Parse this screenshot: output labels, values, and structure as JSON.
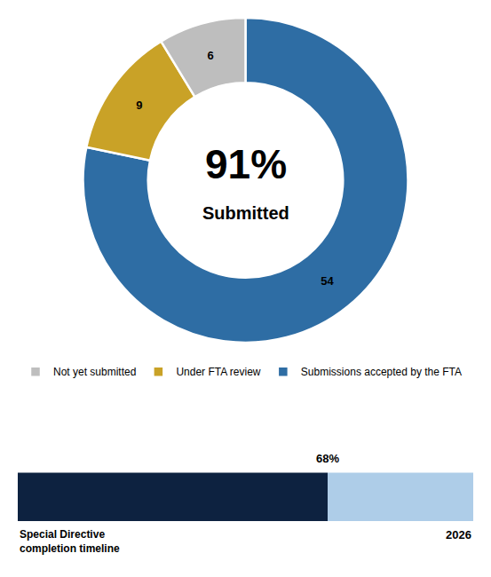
{
  "chart_data": [
    {
      "type": "pie",
      "categories": [
        "Submissions accepted by the FTA",
        "Under FTA review",
        "Not yet submitted"
      ],
      "values": [
        54,
        9,
        6
      ],
      "colors": [
        "#2E6DA4",
        "#C9A227",
        "#BEBEBE"
      ],
      "data_labels": true,
      "legend": "bottom",
      "annotations": [
        "91%",
        "Submitted"
      ]
    },
    {
      "type": "bar",
      "orientation": "horizontal",
      "stacked": true,
      "categories": [
        null
      ],
      "series": [
        {
          "color": "#0D2240",
          "values": [
            68
          ]
        },
        {
          "color": "#AECDE8",
          "values": [
            32
          ]
        }
      ],
      "xlim": [
        0,
        100
      ],
      "grid": false,
      "tick_labels": false,
      "annotations": [
        "68%",
        "Special Directive\ncompletion timeline",
        "2026"
      ]
    }
  ]
}
